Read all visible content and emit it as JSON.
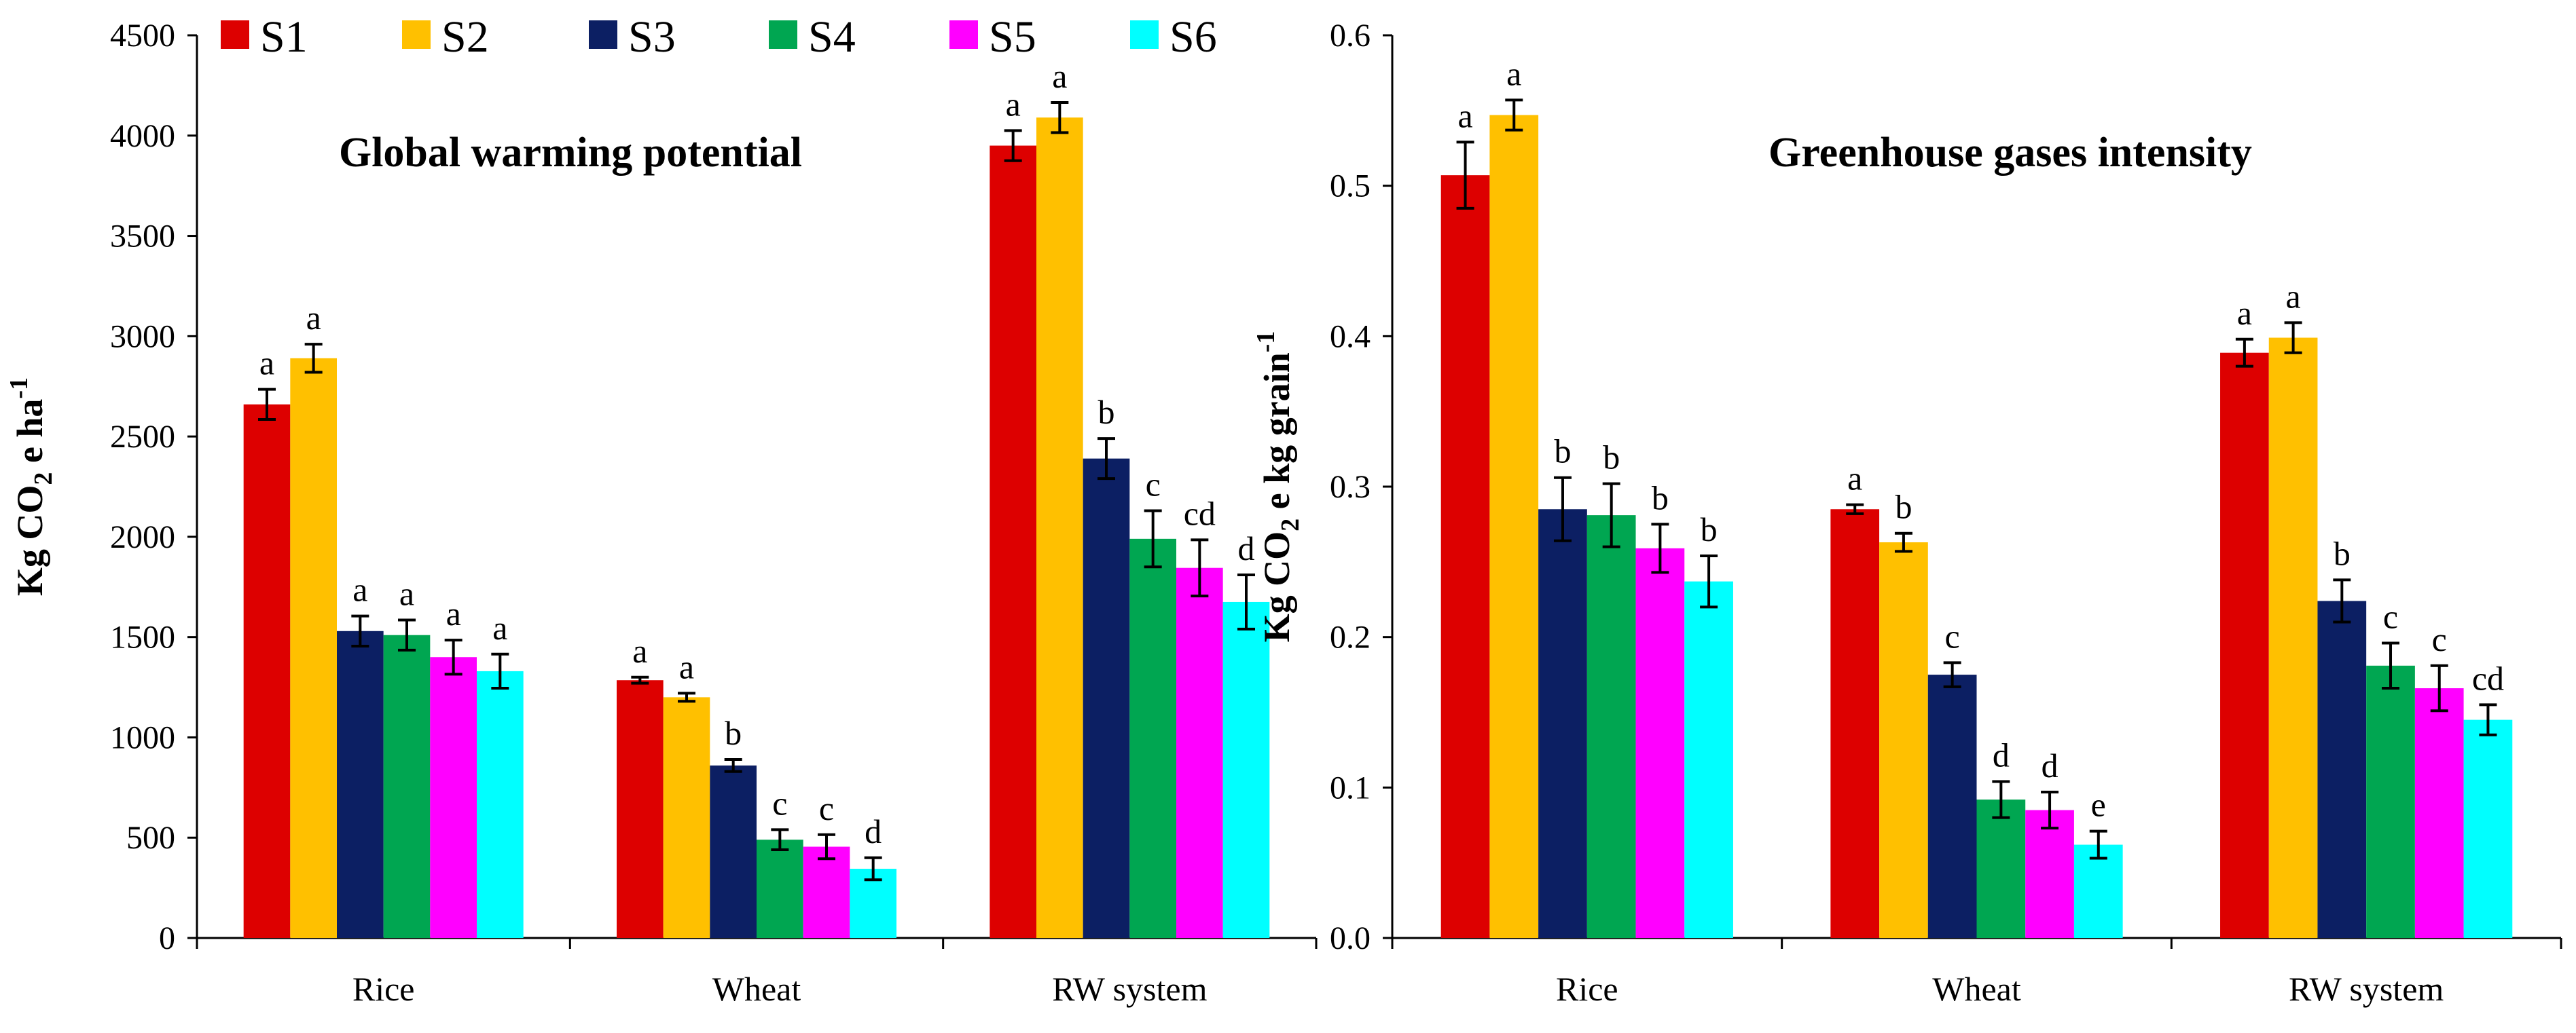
{
  "chart_data": [
    {
      "type": "bar",
      "title": "Global warming potential",
      "ylabel_main": "Kg CO",
      "ylabel_sub": "2",
      "ylabel_mid": " e ha",
      "ylabel_sup": "-1",
      "ylim": [
        0,
        4500
      ],
      "ytick_values": [
        0,
        500,
        1000,
        1500,
        2000,
        2500,
        3000,
        3500,
        4000,
        4500
      ],
      "ytick_labels": [
        "0",
        "500",
        "1000",
        "1500",
        "2000",
        "2500",
        "3000",
        "3500",
        "4000",
        "4500"
      ],
      "categories": [
        "Rice",
        "Wheat",
        "RW system"
      ],
      "series": [
        {
          "name": "S1",
          "values": [
            2660,
            1285,
            3950
          ],
          "errors": [
            75,
            15,
            75
          ],
          "letters": [
            "a",
            "a",
            "a"
          ]
        },
        {
          "name": "S2",
          "values": [
            2890,
            1200,
            4090
          ],
          "errors": [
            70,
            20,
            75
          ],
          "letters": [
            "a",
            "a",
            "a"
          ]
        },
        {
          "name": "S3",
          "values": [
            1530,
            860,
            2390
          ],
          "errors": [
            75,
            30,
            100
          ],
          "letters": [
            "a",
            "b",
            "b"
          ]
        },
        {
          "name": "S4",
          "values": [
            1510,
            490,
            1990
          ],
          "errors": [
            75,
            50,
            140
          ],
          "letters": [
            "a",
            "c",
            "c"
          ]
        },
        {
          "name": "S5",
          "values": [
            1400,
            455,
            1845
          ],
          "errors": [
            85,
            60,
            140
          ],
          "letters": [
            "a",
            "c",
            "cd"
          ]
        },
        {
          "name": "S6",
          "values": [
            1330,
            345,
            1675
          ],
          "errors": [
            85,
            55,
            135
          ],
          "letters": [
            "a",
            "d",
            "d"
          ]
        }
      ]
    },
    {
      "type": "bar",
      "title": "Greenhouse gases intensity",
      "ylabel_main": "Kg CO",
      "ylabel_sub": "2",
      "ylabel_mid": " e kg grain",
      "ylabel_sup": "-1",
      "ylim": [
        0,
        0.6
      ],
      "ytick_values": [
        0,
        0.1,
        0.2,
        0.3,
        0.4,
        0.5,
        0.6
      ],
      "ytick_labels": [
        "0.0",
        "0.1",
        "0.2",
        "0.3",
        "0.4",
        "0.5",
        "0.6"
      ],
      "categories": [
        "Rice",
        "Wheat",
        "RW system"
      ],
      "series": [
        {
          "name": "S1",
          "values": [
            0.507,
            0.285,
            0.389
          ],
          "errors": [
            0.022,
            0.003,
            0.009
          ],
          "letters": [
            "a",
            "a",
            "a"
          ]
        },
        {
          "name": "S2",
          "values": [
            0.547,
            0.263,
            0.399
          ],
          "errors": [
            0.01,
            0.006,
            0.01
          ],
          "letters": [
            "a",
            "b",
            "a"
          ]
        },
        {
          "name": "S3",
          "values": [
            0.285,
            0.175,
            0.224
          ],
          "errors": [
            0.021,
            0.008,
            0.014
          ],
          "letters": [
            "b",
            "c",
            "b"
          ]
        },
        {
          "name": "S4",
          "values": [
            0.281,
            0.092,
            0.181
          ],
          "errors": [
            0.021,
            0.012,
            0.015
          ],
          "letters": [
            "b",
            "d",
            "c"
          ]
        },
        {
          "name": "S5",
          "values": [
            0.259,
            0.085,
            0.166
          ],
          "errors": [
            0.016,
            0.012,
            0.015
          ],
          "letters": [
            "b",
            "d",
            "c"
          ]
        },
        {
          "name": "S6",
          "values": [
            0.237,
            0.062,
            0.145
          ],
          "errors": [
            0.017,
            0.009,
            0.01
          ],
          "letters": [
            "b",
            "e",
            "cd"
          ]
        }
      ]
    }
  ],
  "legend": [
    {
      "name": "S1",
      "color": "#DD0000"
    },
    {
      "name": "S2",
      "color": "#FFC000"
    },
    {
      "name": "S3",
      "color": "#0C1F63"
    },
    {
      "name": "S4",
      "color": "#00A651"
    },
    {
      "name": "S5",
      "color": "#FF00FF"
    },
    {
      "name": "S6",
      "color": "#00FFFF"
    }
  ]
}
